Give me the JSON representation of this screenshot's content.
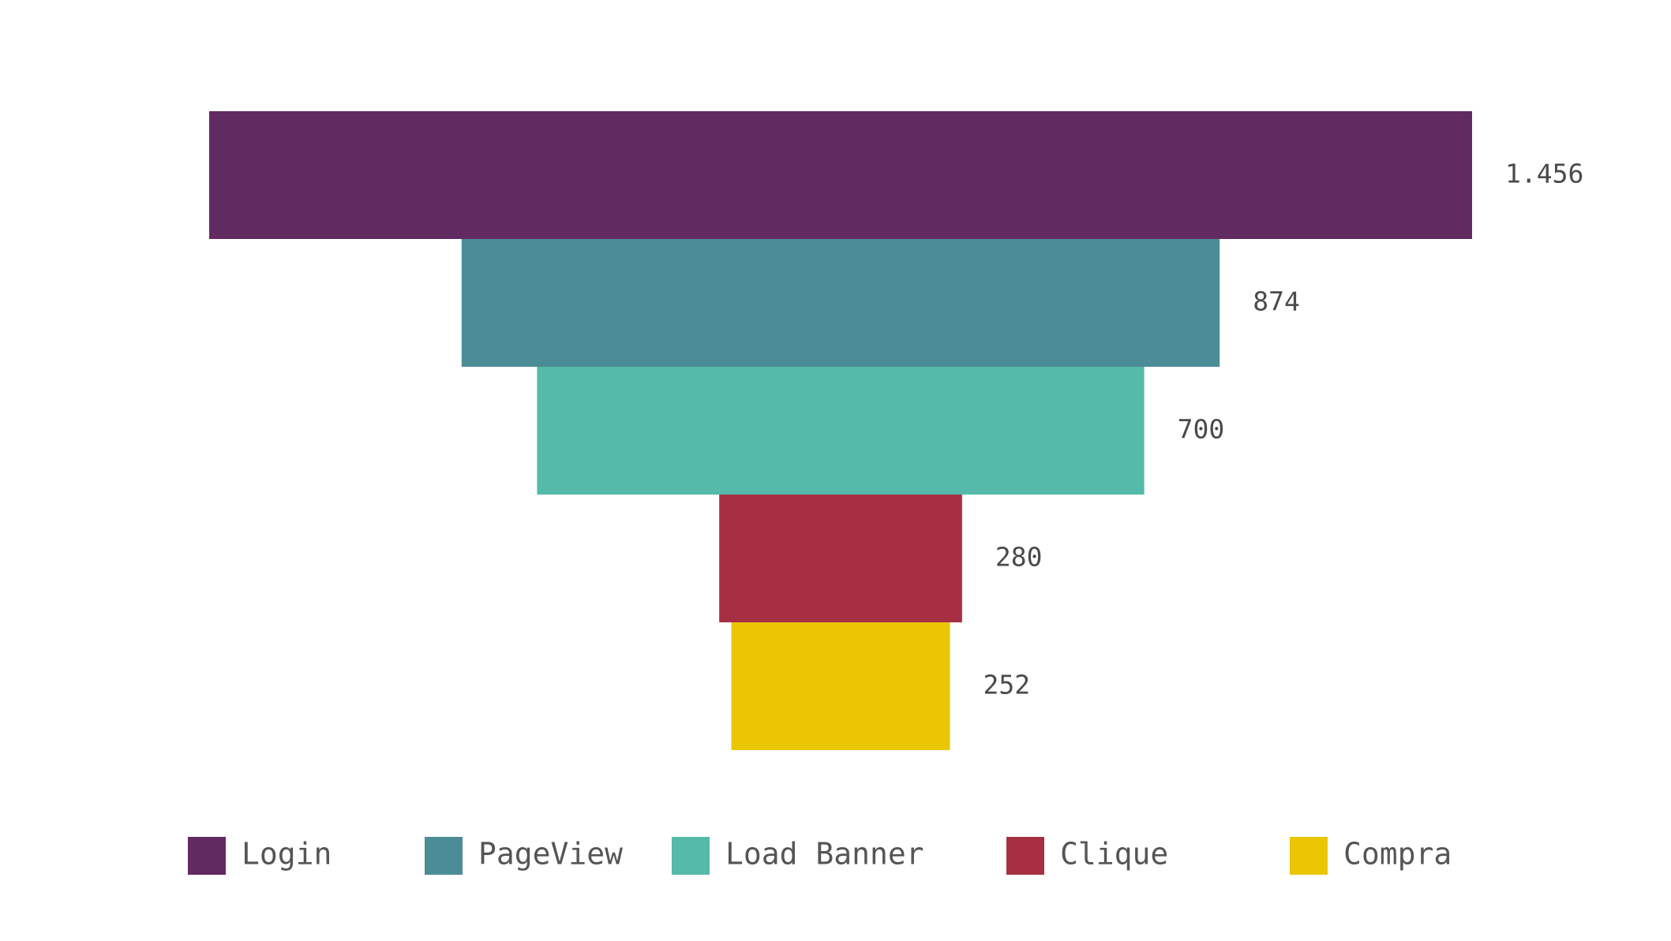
{
  "chart_data": {
    "type": "funnel",
    "title": "",
    "number_format": "pt-BR",
    "stages": [
      {
        "name": "Login",
        "value": 1456,
        "label": "1.456",
        "color": "#612a61"
      },
      {
        "name": "PageView",
        "value": 874,
        "label": "874",
        "color": "#4b8c96"
      },
      {
        "name": "Load Banner",
        "value": 700,
        "label": "700",
        "color": "#55baaa"
      },
      {
        "name": "Clique",
        "value": 280,
        "label": "280",
        "color": "#a63042"
      },
      {
        "name": "Compra",
        "value": 252,
        "label": "252",
        "color": "#ebc605"
      }
    ],
    "legend": {
      "position": "bottom",
      "items": [
        "Login",
        "PageView",
        "Load Banner",
        "Clique",
        "Compra"
      ]
    }
  }
}
